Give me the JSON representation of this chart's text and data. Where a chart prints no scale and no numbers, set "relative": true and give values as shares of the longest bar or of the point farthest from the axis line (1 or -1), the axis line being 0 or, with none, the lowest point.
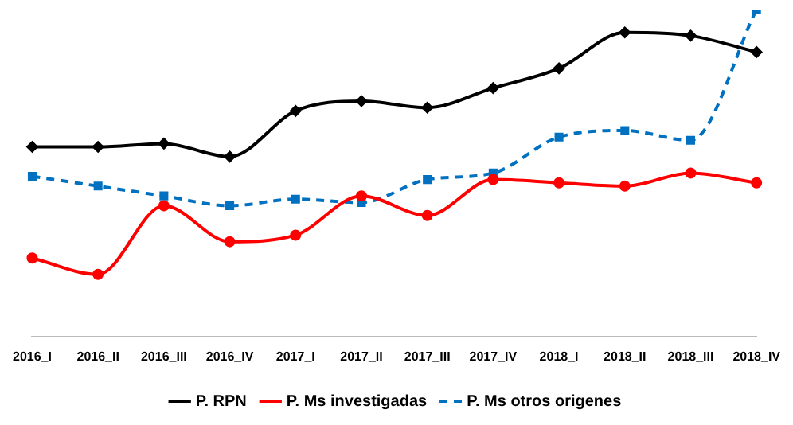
{
  "chart_data": {
    "type": "line",
    "relative": true,
    "grid": false,
    "legend": "bottom",
    "categories": [
      "2016_I",
      "2016_II",
      "2016_III",
      "2016_IV",
      "2017_I",
      "2017_II",
      "2017_III",
      "2017_IV",
      "2018_I",
      "2018_II",
      "2018_III",
      "2018_IV"
    ],
    "series": [
      {
        "name": "P. RPN",
        "color": "#000000",
        "marker": "diamond",
        "line_style": "solid",
        "values": [
          0.58,
          0.58,
          0.59,
          0.55,
          0.69,
          0.72,
          0.7,
          0.76,
          0.82,
          0.93,
          0.92,
          0.87
        ]
      },
      {
        "name": "P. Ms investigadas",
        "color": "#ff0000",
        "marker": "circle",
        "line_style": "solid",
        "values": [
          0.24,
          0.19,
          0.4,
          0.29,
          0.31,
          0.43,
          0.37,
          0.48,
          0.47,
          0.46,
          0.5,
          0.47
        ]
      },
      {
        "name": "P. Ms otros origenes",
        "color": "#0070c0",
        "marker": "square",
        "line_style": "dashed",
        "values": [
          0.49,
          0.46,
          0.43,
          0.4,
          0.42,
          0.41,
          0.48,
          0.5,
          0.61,
          0.63,
          0.6,
          1
        ]
      }
    ]
  }
}
